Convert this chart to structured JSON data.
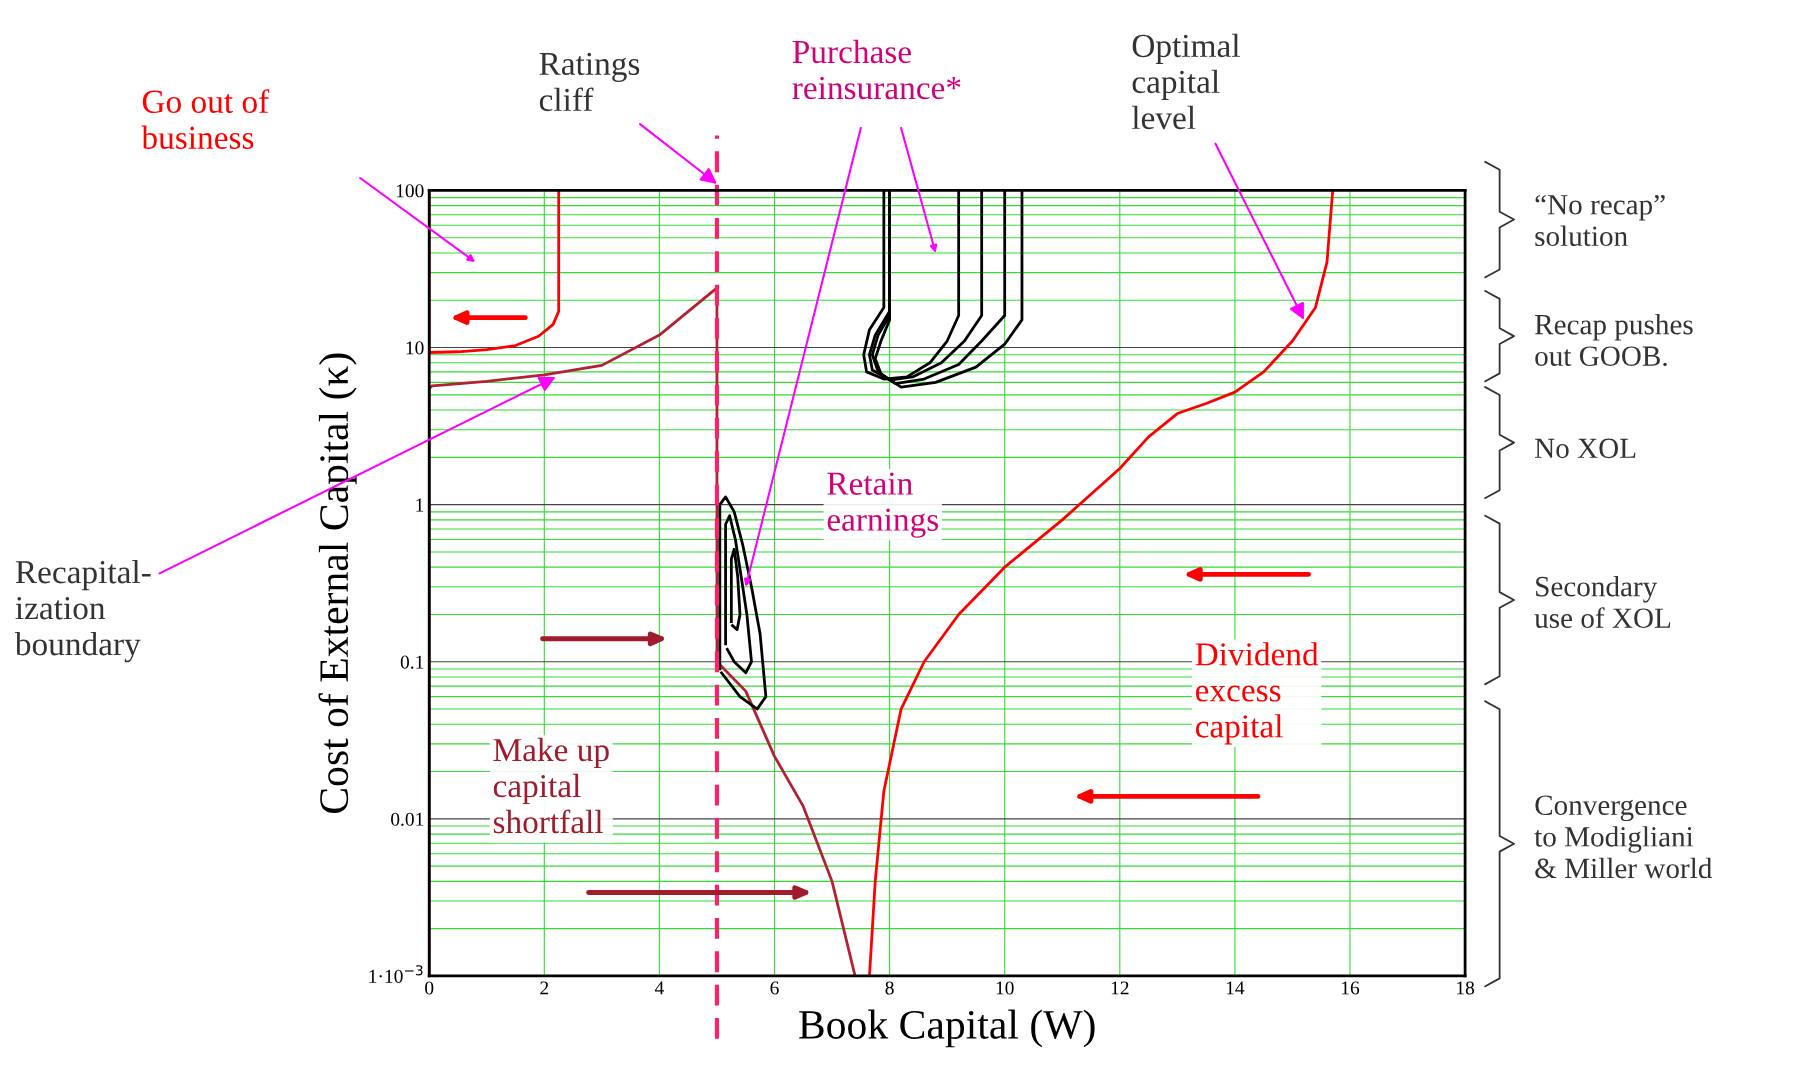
{
  "chart_data": {
    "type": "line",
    "xlabel": "Book Capital (W)",
    "ylabel": "Cost of External Capital (κ)",
    "xlim": [
      0,
      18
    ],
    "xticks": [
      0,
      2,
      4,
      6,
      8,
      10,
      12,
      14,
      16,
      18
    ],
    "ylim": [
      0.001,
      100
    ],
    "yticks": [
      {
        "value": 0.001,
        "label": "1·10$^{−3}$"
      },
      0.01,
      0.1,
      1,
      10,
      100
    ],
    "log": "y",
    "grid": true,
    "legend": false,
    "series": [
      {
        "color": "#ff0000",
        "x": [
          0,
          0,
          0.5,
          1.0,
          1.5,
          1.9,
          2.15,
          2.25,
          2.25
        ],
        "values": [
          100,
          9.3,
          9.4,
          9.7,
          10.3,
          11.8,
          14,
          17,
          100
        ]
      },
      {
        "color": "#b22234",
        "x": [
          0,
          0,
          0.05,
          1,
          2,
          3,
          4,
          5,
          5,
          5.5,
          6,
          6.5,
          7,
          7.4
        ],
        "values": [
          0.001,
          5.5,
          5.7,
          6.1,
          6.7,
          7.7,
          12,
          24,
          0.1,
          0.065,
          0.025,
          0.012,
          0.004,
          0.001
        ]
      },
      {
        "color": "#ff0000",
        "x": [
          7.65,
          7.75,
          7.9,
          8.2,
          8.6,
          9.2,
          10,
          11,
          12,
          12.5,
          13,
          13.5,
          14,
          14.5,
          15,
          15.4,
          15.6,
          15.7
        ],
        "values": [
          0.001,
          0.004,
          0.015,
          0.05,
          0.1,
          0.2,
          0.4,
          0.8,
          1.7,
          2.7,
          3.8,
          4.4,
          5.2,
          7,
          11,
          18,
          35,
          100
        ]
      },
      {
        "color": "#000000",
        "x": [
          7.9,
          7.9,
          7.65,
          7.55,
          7.6,
          7.9,
          8.3,
          8.7,
          9.0,
          9.2,
          9.2
        ],
        "values": [
          100,
          18,
          13,
          9,
          7,
          6.3,
          6.5,
          8,
          11,
          16,
          100
        ]
      },
      {
        "color": "#000000",
        "x": [
          8.0,
          8.0,
          7.75,
          7.65,
          7.7,
          8.0,
          8.4,
          8.9,
          9.3,
          9.6,
          9.6
        ],
        "values": [
          100,
          17,
          12,
          9,
          7.2,
          6.2,
          6.5,
          8,
          11,
          16,
          100
        ]
      },
      {
        "color": "#000000",
        "x": [
          8.0,
          8.0,
          7.8,
          7.7,
          7.8,
          8.1,
          8.6,
          9.2,
          9.6,
          10.0,
          10.0
        ],
        "values": [
          100,
          16,
          12,
          9,
          7,
          5.9,
          6.3,
          7.8,
          11,
          16,
          100
        ]
      },
      {
        "color": "#000000",
        "x": [
          8.0,
          8.0,
          7.85,
          7.75,
          7.85,
          8.2,
          8.8,
          9.5,
          10.0,
          10.3,
          10.3
        ],
        "values": [
          100,
          15,
          11,
          8.5,
          6.8,
          5.6,
          6.0,
          7.5,
          10.5,
          15,
          100
        ]
      },
      {
        "color": "#000000",
        "x": [
          5.05,
          5.05,
          5.15,
          5.3,
          5.45,
          5.6,
          5.75,
          5.85,
          5.7,
          5.4,
          5.08
        ],
        "values": [
          0.09,
          1.0,
          1.12,
          0.9,
          0.55,
          0.3,
          0.15,
          0.06,
          0.05,
          0.06,
          0.085
        ]
      },
      {
        "color": "#000000",
        "x": [
          5.15,
          5.15,
          5.22,
          5.32,
          5.42,
          5.52,
          5.6,
          5.5,
          5.3,
          5.18
        ],
        "values": [
          0.13,
          0.75,
          0.85,
          0.6,
          0.35,
          0.2,
          0.1,
          0.085,
          0.1,
          0.12
        ]
      },
      {
        "color": "#000000",
        "x": [
          5.25,
          5.25,
          5.3,
          5.36,
          5.4,
          5.35,
          5.27
        ],
        "values": [
          0.18,
          0.45,
          0.52,
          0.35,
          0.2,
          0.16,
          0.17
        ]
      }
    ],
    "ref_lines": [
      {
        "axis": "x",
        "value": 5,
        "color": "#ff1f6f",
        "line_style": "dashed"
      }
    ],
    "annotations": [
      "Go out of\nbusiness",
      {
        "text": "Ratings\ncliff",
        "x": 5,
        "y": 110
      },
      "Purchase\nreinsurance*",
      {
        "text": "Optimal\ncapital\nlevel",
        "x": 15.2,
        "y": 15
      },
      {
        "text": "Recapital-\nization\nboundary",
        "x": 2.2,
        "y": 6.5
      },
      "Retain\nearnings",
      "Dividend\nexcess\ncapital",
      "Make up\ncapital\nshortfall",
      "“No recap”\nsolution",
      "Recap pushes\nout GOOB.",
      "No XOL",
      "Secondary\nuse of XOL",
      "Convergence\nto Modigliani\n& Miller world"
    ]
  }
}
